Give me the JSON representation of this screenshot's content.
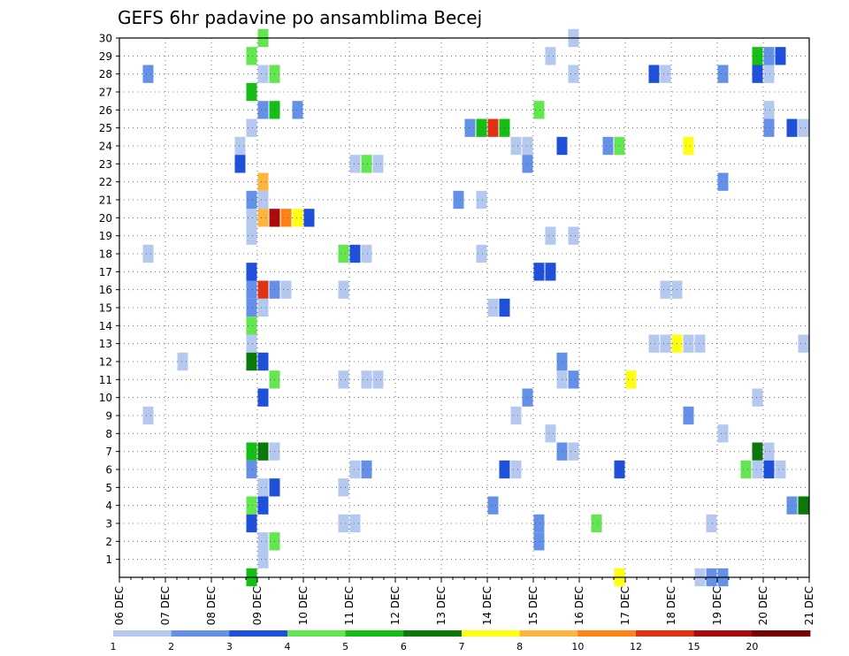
{
  "chart_data": {
    "type": "heatmap",
    "title": "GEFS 6hr padavine po ansamblima Becej",
    "xlabel": "",
    "ylabel": "",
    "x_ticks": [
      "06 DEC",
      "07 DEC",
      "08 DEC",
      "09 DEC",
      "10 DEC",
      "11 DEC",
      "12 DEC",
      "13 DEC",
      "14 DEC",
      "15 DEC",
      "16 DEC",
      "17 DEC",
      "18 DEC",
      "19 DEC",
      "20 DEC",
      "21 DEC"
    ],
    "y_ticks": [
      "1",
      "2",
      "3",
      "4",
      "5",
      "6",
      "7",
      "8",
      "9",
      "10",
      "11",
      "12",
      "13",
      "14",
      "15",
      "16",
      "17",
      "18",
      "19",
      "20",
      "21",
      "22",
      "23",
      "24",
      "25",
      "26",
      "27",
      "28",
      "29",
      "30"
    ],
    "x_unit": "6-hour step from 06 DEC 00Z (4 steps per day)",
    "xlim": [
      0,
      60
    ],
    "ylim": [
      0,
      30
    ],
    "grid": true,
    "colorbar": {
      "labels": [
        "1",
        "2",
        "3",
        "4",
        "5",
        "6",
        "7",
        "8",
        "10",
        "12",
        "15",
        "20"
      ],
      "colors": [
        "#b4c8f0",
        "#6490e8",
        "#1e50dc",
        "#64e650",
        "#14be14",
        "#0a780a",
        "#ffff14",
        "#ffb43c",
        "#ff8214",
        "#e13214",
        "#aa0a0a",
        "#780000"
      ]
    },
    "cells": [
      {
        "x": 12,
        "y": 30,
        "c": 3
      },
      {
        "x": 39,
        "y": 30,
        "c": 0
      },
      {
        "x": 11,
        "y": 29,
        "c": 3
      },
      {
        "x": 37,
        "y": 29,
        "c": 0
      },
      {
        "x": 55,
        "y": 29,
        "c": 4
      },
      {
        "x": 56,
        "y": 29,
        "c": 1
      },
      {
        "x": 57,
        "y": 29,
        "c": 2
      },
      {
        "x": 2,
        "y": 28,
        "c": 1
      },
      {
        "x": 12,
        "y": 28,
        "c": 0
      },
      {
        "x": 13,
        "y": 28,
        "c": 3
      },
      {
        "x": 39,
        "y": 28,
        "c": 0
      },
      {
        "x": 46,
        "y": 28,
        "c": 2
      },
      {
        "x": 47,
        "y": 28,
        "c": 0
      },
      {
        "x": 52,
        "y": 28,
        "c": 1
      },
      {
        "x": 55,
        "y": 28,
        "c": 2
      },
      {
        "x": 56,
        "y": 28,
        "c": 0
      },
      {
        "x": 11,
        "y": 27,
        "c": 4
      },
      {
        "x": 12,
        "y": 26,
        "c": 1
      },
      {
        "x": 13,
        "y": 26,
        "c": 4
      },
      {
        "x": 15,
        "y": 26,
        "c": 1
      },
      {
        "x": 36,
        "y": 26,
        "c": 3
      },
      {
        "x": 56,
        "y": 26,
        "c": 0
      },
      {
        "x": 11,
        "y": 25,
        "c": 0
      },
      {
        "x": 30,
        "y": 25,
        "c": 1
      },
      {
        "x": 31,
        "y": 25,
        "c": 4
      },
      {
        "x": 32,
        "y": 25,
        "c": 9
      },
      {
        "x": 33,
        "y": 25,
        "c": 4
      },
      {
        "x": 56,
        "y": 25,
        "c": 1
      },
      {
        "x": 58,
        "y": 25,
        "c": 2
      },
      {
        "x": 59,
        "y": 25,
        "c": 0
      },
      {
        "x": 10,
        "y": 24,
        "c": 0
      },
      {
        "x": 34,
        "y": 24,
        "c": 0
      },
      {
        "x": 35,
        "y": 24,
        "c": 0
      },
      {
        "x": 38,
        "y": 24,
        "c": 2
      },
      {
        "x": 42,
        "y": 24,
        "c": 1
      },
      {
        "x": 43,
        "y": 24,
        "c": 3
      },
      {
        "x": 49,
        "y": 24,
        "c": 6
      },
      {
        "x": 10,
        "y": 23,
        "c": 2
      },
      {
        "x": 20,
        "y": 23,
        "c": 0
      },
      {
        "x": 21,
        "y": 23,
        "c": 3
      },
      {
        "x": 22,
        "y": 23,
        "c": 0
      },
      {
        "x": 35,
        "y": 23,
        "c": 1
      },
      {
        "x": 12,
        "y": 22,
        "c": 7
      },
      {
        "x": 52,
        "y": 22,
        "c": 1
      },
      {
        "x": 11,
        "y": 21,
        "c": 1
      },
      {
        "x": 12,
        "y": 21,
        "c": 0
      },
      {
        "x": 29,
        "y": 21,
        "c": 1
      },
      {
        "x": 31,
        "y": 21,
        "c": 0
      },
      {
        "x": 11,
        "y": 20,
        "c": 0
      },
      {
        "x": 12,
        "y": 20,
        "c": 7
      },
      {
        "x": 13,
        "y": 20,
        "c": 10
      },
      {
        "x": 14,
        "y": 20,
        "c": 8
      },
      {
        "x": 15,
        "y": 20,
        "c": 6
      },
      {
        "x": 16,
        "y": 20,
        "c": 2
      },
      {
        "x": 11,
        "y": 19,
        "c": 0
      },
      {
        "x": 37,
        "y": 19,
        "c": 0
      },
      {
        "x": 39,
        "y": 19,
        "c": 0
      },
      {
        "x": 2,
        "y": 18,
        "c": 0
      },
      {
        "x": 19,
        "y": 18,
        "c": 3
      },
      {
        "x": 20,
        "y": 18,
        "c": 2
      },
      {
        "x": 21,
        "y": 18,
        "c": 0
      },
      {
        "x": 31,
        "y": 18,
        "c": 0
      },
      {
        "x": 11,
        "y": 17,
        "c": 2
      },
      {
        "x": 36,
        "y": 17,
        "c": 2
      },
      {
        "x": 37,
        "y": 17,
        "c": 2
      },
      {
        "x": 11,
        "y": 16,
        "c": 1
      },
      {
        "x": 12,
        "y": 16,
        "c": 9
      },
      {
        "x": 13,
        "y": 16,
        "c": 1
      },
      {
        "x": 14,
        "y": 16,
        "c": 0
      },
      {
        "x": 19,
        "y": 16,
        "c": 0
      },
      {
        "x": 47,
        "y": 16,
        "c": 0
      },
      {
        "x": 48,
        "y": 16,
        "c": 0
      },
      {
        "x": 11,
        "y": 15,
        "c": 1
      },
      {
        "x": 12,
        "y": 15,
        "c": 0
      },
      {
        "x": 32,
        "y": 15,
        "c": 0
      },
      {
        "x": 33,
        "y": 15,
        "c": 2
      },
      {
        "x": 11,
        "y": 14,
        "c": 3
      },
      {
        "x": 11,
        "y": 13,
        "c": 0
      },
      {
        "x": 46,
        "y": 13,
        "c": 0
      },
      {
        "x": 47,
        "y": 13,
        "c": 0
      },
      {
        "x": 48,
        "y": 13,
        "c": 6
      },
      {
        "x": 49,
        "y": 13,
        "c": 0
      },
      {
        "x": 50,
        "y": 13,
        "c": 0
      },
      {
        "x": 59,
        "y": 13,
        "c": 0
      },
      {
        "x": 11,
        "y": 12,
        "c": 5
      },
      {
        "x": 12,
        "y": 12,
        "c": 2
      },
      {
        "x": 5,
        "y": 12,
        "c": 0
      },
      {
        "x": 38,
        "y": 12,
        "c": 1
      },
      {
        "x": 13,
        "y": 11,
        "c": 3
      },
      {
        "x": 19,
        "y": 11,
        "c": 0
      },
      {
        "x": 21,
        "y": 11,
        "c": 0
      },
      {
        "x": 22,
        "y": 11,
        "c": 0
      },
      {
        "x": 38,
        "y": 11,
        "c": 0
      },
      {
        "x": 39,
        "y": 11,
        "c": 1
      },
      {
        "x": 44,
        "y": 11,
        "c": 6
      },
      {
        "x": 12,
        "y": 10,
        "c": 2
      },
      {
        "x": 35,
        "y": 10,
        "c": 1
      },
      {
        "x": 55,
        "y": 10,
        "c": 0
      },
      {
        "x": 2,
        "y": 9,
        "c": 0
      },
      {
        "x": 34,
        "y": 9,
        "c": 0
      },
      {
        "x": 49,
        "y": 9,
        "c": 1
      },
      {
        "x": 37,
        "y": 8,
        "c": 0
      },
      {
        "x": 52,
        "y": 8,
        "c": 0
      },
      {
        "x": 11,
        "y": 7,
        "c": 4
      },
      {
        "x": 12,
        "y": 7,
        "c": 5
      },
      {
        "x": 13,
        "y": 7,
        "c": 0
      },
      {
        "x": 38,
        "y": 7,
        "c": 1
      },
      {
        "x": 39,
        "y": 7,
        "c": 0
      },
      {
        "x": 55,
        "y": 7,
        "c": 5
      },
      {
        "x": 56,
        "y": 7,
        "c": 0
      },
      {
        "x": 11,
        "y": 6,
        "c": 1
      },
      {
        "x": 20,
        "y": 6,
        "c": 0
      },
      {
        "x": 21,
        "y": 6,
        "c": 1
      },
      {
        "x": 33,
        "y": 6,
        "c": 2
      },
      {
        "x": 34,
        "y": 6,
        "c": 0
      },
      {
        "x": 43,
        "y": 6,
        "c": 2
      },
      {
        "x": 54,
        "y": 6,
        "c": 3
      },
      {
        "x": 55,
        "y": 6,
        "c": 0
      },
      {
        "x": 56,
        "y": 6,
        "c": 2
      },
      {
        "x": 57,
        "y": 6,
        "c": 0
      },
      {
        "x": 12,
        "y": 5,
        "c": 0
      },
      {
        "x": 13,
        "y": 5,
        "c": 2
      },
      {
        "x": 19,
        "y": 5,
        "c": 0
      },
      {
        "x": 11,
        "y": 4,
        "c": 3
      },
      {
        "x": 12,
        "y": 4,
        "c": 2
      },
      {
        "x": 32,
        "y": 4,
        "c": 1
      },
      {
        "x": 58,
        "y": 4,
        "c": 1
      },
      {
        "x": 59,
        "y": 4,
        "c": 5
      },
      {
        "x": 11,
        "y": 3,
        "c": 2
      },
      {
        "x": 19,
        "y": 3,
        "c": 0
      },
      {
        "x": 20,
        "y": 3,
        "c": 0
      },
      {
        "x": 36,
        "y": 3,
        "c": 1
      },
      {
        "x": 41,
        "y": 3,
        "c": 3
      },
      {
        "x": 51,
        "y": 3,
        "c": 0
      },
      {
        "x": 12,
        "y": 2,
        "c": 0
      },
      {
        "x": 13,
        "y": 2,
        "c": 3
      },
      {
        "x": 36,
        "y": 2,
        "c": 1
      },
      {
        "x": 12,
        "y": 1,
        "c": 0
      },
      {
        "x": 11,
        "y": 0,
        "c": 4
      },
      {
        "x": 43,
        "y": 0,
        "c": 6
      },
      {
        "x": 50,
        "y": 0,
        "c": 0
      },
      {
        "x": 51,
        "y": 0,
        "c": 1
      },
      {
        "x": 52,
        "y": 0,
        "c": 1
      }
    ]
  }
}
